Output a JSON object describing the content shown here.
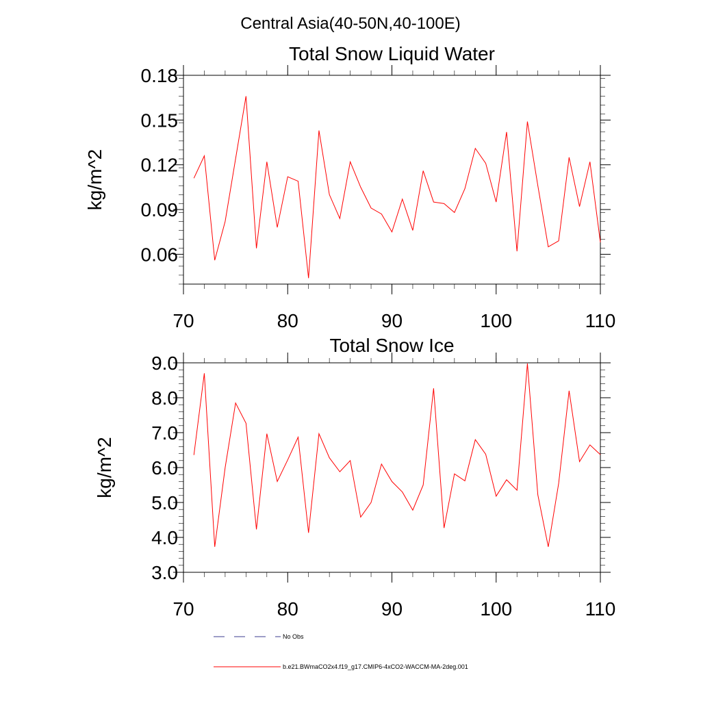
{
  "figure_title": "Central Asia(40-50N,40-100E)",
  "legend": {
    "entries": [
      {
        "label": "No Obs",
        "color": "#3b3b8f",
        "dash": "dashed"
      },
      {
        "label": "b.e21.BWmaCO2x4.f19_g17.CMIP6-4xCO2-WACCM-MA-2deg.001",
        "color": "#ff0000",
        "dash": "solid"
      }
    ]
  },
  "chart_data": [
    {
      "type": "line",
      "title": "Total Snow Liquid Water",
      "xlabel": "",
      "ylabel": "kg/m^2",
      "xlim": [
        70,
        110
      ],
      "ylim": [
        0.04,
        0.18
      ],
      "xticks": [
        70,
        80,
        90,
        100,
        110
      ],
      "xtick_labels": [
        "70",
        "80",
        "90",
        "100",
        "110"
      ],
      "yticks": [
        0.06,
        0.09,
        0.12,
        0.15,
        0.18
      ],
      "ytick_labels": [
        "0.06",
        "0.09",
        "0.12",
        "0.15",
        "0.18"
      ],
      "x_minor_step": 2,
      "y_minor_step": 0.006,
      "grid": false,
      "series": [
        {
          "name": "b.e21.BWmaCO2x4.f19_g17.CMIP6-4xCO2-WACCM-MA-2deg.001",
          "color": "#ff0000",
          "x": [
            71,
            72,
            73,
            74,
            75,
            76,
            77,
            78,
            79,
            80,
            81,
            82,
            83,
            84,
            85,
            86,
            87,
            88,
            89,
            90,
            91,
            92,
            93,
            94,
            95,
            96,
            97,
            98,
            99,
            100,
            101,
            102,
            103,
            104,
            105,
            106,
            107,
            108,
            109,
            110
          ],
          "y": [
            0.111,
            0.126,
            0.056,
            0.082,
            0.124,
            0.166,
            0.064,
            0.122,
            0.078,
            0.112,
            0.109,
            0.044,
            0.143,
            0.1,
            0.084,
            0.122,
            0.105,
            0.091,
            0.087,
            0.075,
            0.097,
            0.076,
            0.116,
            0.095,
            0.094,
            0.088,
            0.104,
            0.131,
            0.121,
            0.095,
            0.142,
            0.062,
            0.149,
            0.106,
            0.065,
            0.069,
            0.125,
            0.092,
            0.122,
            0.068
          ]
        }
      ]
    },
    {
      "type": "line",
      "title": "Total Snow Ice",
      "xlabel": "",
      "ylabel": "kg/m^2",
      "xlim": [
        70,
        110
      ],
      "ylim": [
        3.0,
        9.0
      ],
      "xticks": [
        70,
        80,
        90,
        100,
        110
      ],
      "xtick_labels": [
        "70",
        "80",
        "90",
        "100",
        "110"
      ],
      "yticks": [
        3.0,
        4.0,
        5.0,
        6.0,
        7.0,
        8.0,
        9.0
      ],
      "ytick_labels": [
        "3.0",
        "4.0",
        "5.0",
        "6.0",
        "7.0",
        "8.0",
        "9.0"
      ],
      "x_minor_step": 2,
      "y_minor_step": 0.2,
      "grid": false,
      "series": [
        {
          "name": "b.e21.BWmaCO2x4.f19_g17.CMIP6-4xCO2-WACCM-MA-2deg.001",
          "color": "#ff0000",
          "x": [
            71,
            72,
            73,
            74,
            75,
            76,
            77,
            78,
            79,
            80,
            81,
            82,
            83,
            84,
            85,
            86,
            87,
            88,
            89,
            90,
            91,
            92,
            93,
            94,
            95,
            96,
            97,
            98,
            99,
            100,
            101,
            102,
            103,
            104,
            105,
            106,
            107,
            108,
            109,
            110
          ],
          "y": [
            6.36,
            8.7,
            3.73,
            6.0,
            7.85,
            7.27,
            4.23,
            6.97,
            5.6,
            6.22,
            6.87,
            4.13,
            6.97,
            6.28,
            5.88,
            6.2,
            4.58,
            5.0,
            6.1,
            5.6,
            5.3,
            4.78,
            5.5,
            8.27,
            4.27,
            5.82,
            5.62,
            6.8,
            6.38,
            5.18,
            5.65,
            5.35,
            8.98,
            5.22,
            3.73,
            5.55,
            8.2,
            6.17,
            6.65,
            6.37
          ]
        }
      ]
    }
  ]
}
